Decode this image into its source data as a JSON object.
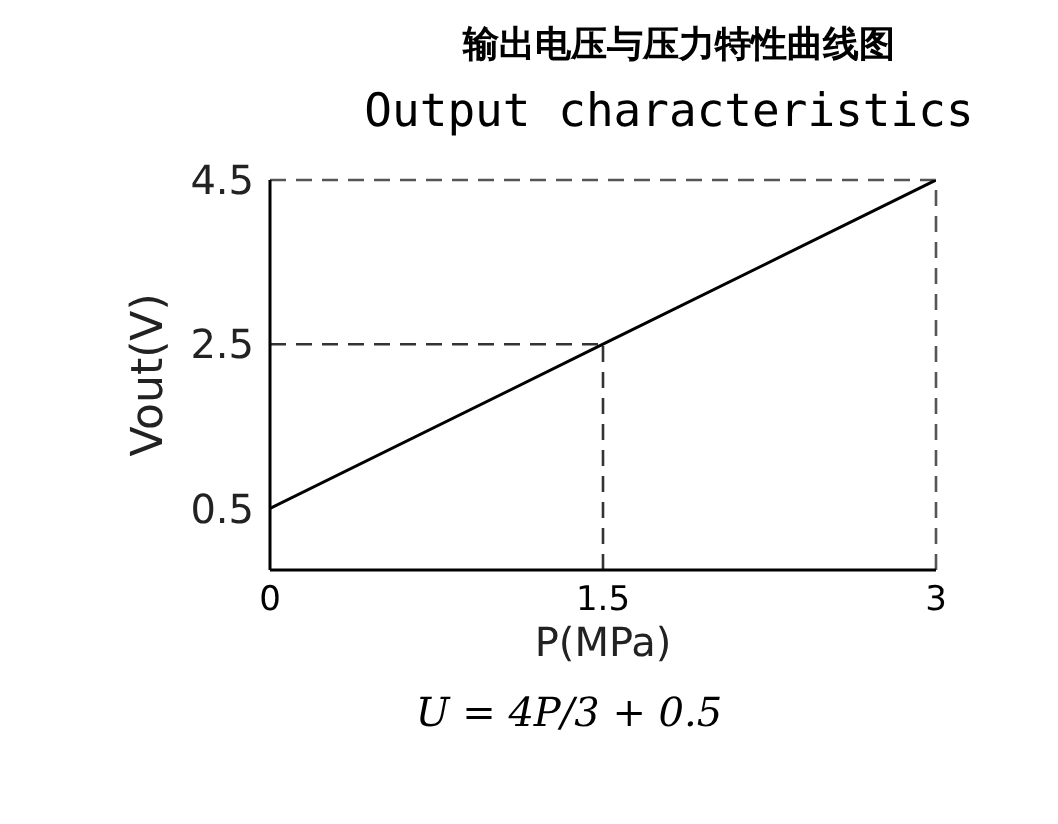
{
  "chart_data": {
    "type": "line",
    "title": "输出电压与压力特性曲线图",
    "subtitle": "Output characteristics",
    "xlabel": "P(MPa)",
    "ylabel": "Vout(V)",
    "x": [
      0,
      1.5,
      3
    ],
    "series": [
      {
        "color": "#000000",
        "values": [
          0.5,
          2.5,
          4.5
        ]
      }
    ],
    "xlim": [
      0,
      3
    ],
    "xticks": [
      0,
      1.5,
      3
    ],
    "ylim": [
      -0.25,
      4.5
    ],
    "yticks": [
      0.5,
      2.5,
      4.5
    ],
    "ref_lines": [
      {
        "axis": "y",
        "value": 2.5,
        "color": "#333333",
        "line_style": "dashed"
      },
      {
        "axis": "x",
        "value": 1.5,
        "color": "#333333",
        "line_style": "dashed"
      },
      {
        "axis": "y",
        "value": 4.5,
        "color": "#555555",
        "line_style": "dashed"
      },
      {
        "axis": "x",
        "value": 3,
        "color": "#555555",
        "line_style": "dashed"
      }
    ],
    "annotations": [
      "U = 4P/3 + 0.5"
    ],
    "grid": false,
    "marker": "none",
    "line_style": "solid"
  }
}
